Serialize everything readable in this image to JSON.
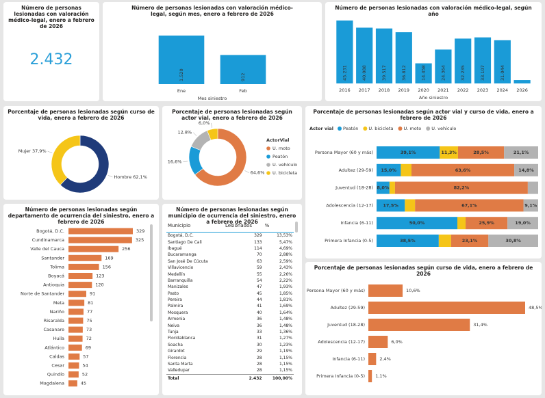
{
  "kpi": {
    "title": "Número de personas lesionadas con valoración médico-legal, enero a febrero de 2026",
    "value": "2.432"
  },
  "chart_data": [
    {
      "type": "bar",
      "title": "Número de personas lesionadas con valoración médico-legal, según mes, enero a febrero de 2026",
      "x_label": "Mes siniestro",
      "categories": [
        "Ene",
        "Feb"
      ],
      "values": [
        1520,
        912
      ],
      "value_labels": [
        "1.520",
        "912"
      ],
      "color": "#1a9bd7"
    },
    {
      "type": "bar",
      "title": "Número de personas lesionadas con valoración médico-legal, según año",
      "x_label": "Año siniestro",
      "categories": [
        "2016",
        "2017",
        "2018",
        "2019",
        "2020",
        "2021",
        "2022",
        "2023",
        "2024",
        "2026"
      ],
      "values": [
        45231,
        40088,
        39517,
        36812,
        14458,
        24364,
        32235,
        33107,
        31044,
        2432
      ],
      "value_labels": [
        "45.231",
        "40.088",
        "39.517",
        "36.812",
        "14.458",
        "24.364",
        "32.235",
        "33.107",
        "31.044",
        null
      ],
      "color": "#1a9bd7"
    },
    {
      "type": "donut",
      "title": "Porcentaje de personas lesionadas según curso de vida, enero a febrero de 2026",
      "categories": [
        "Hombre",
        "Mujer"
      ],
      "values": [
        62.1,
        37.9
      ],
      "value_labels": [
        "62,1%",
        "37,9%"
      ],
      "colors": [
        "#1f3b7a",
        "#f5c518"
      ]
    },
    {
      "type": "donut",
      "title": "Porcentaje de personas lesionadas según actor vial, enero a febrero de 2026",
      "legend_title": "ActorVial",
      "categories": [
        "U. moto",
        "Peatón",
        "U. vehículo",
        "U. bicicleta"
      ],
      "values": [
        64.6,
        16.6,
        12.8,
        6.0
      ],
      "value_labels": [
        "64,6%",
        "16,6%",
        "12,8%",
        "6,0%"
      ],
      "colors": [
        "#e07b45",
        "#1a9bd7",
        "#b3b3b3",
        "#f5c518"
      ]
    },
    {
      "type": "stacked_bar_h",
      "title": "Porcentaje de personas lesionadas según actor vial y curso de vida, enero a febrero de 2026",
      "legend_title": "Actor vial",
      "categories": [
        "Persona Mayor (60 y más)",
        "Adultez (29-59)",
        "Juventud (18-28)",
        "Adolescencia (12-17)",
        "Infancia (6-11)",
        "Primera Infancia (0-5)"
      ],
      "series": [
        {
          "name": "Peatón",
          "color": "#1a9bd7",
          "values": [
            39.1,
            15.0,
            8.0,
            17.5,
            50.0,
            38.5
          ],
          "value_labels": [
            "39,1%",
            "15,0%",
            "8,0%",
            "17,5%",
            "50,0%",
            "38,5%"
          ]
        },
        {
          "name": "U. bicicleta",
          "color": "#f5c518",
          "values": [
            11.3,
            6.6,
            3.4,
            6.3,
            5.1,
            7.6
          ],
          "value_labels": [
            "11,3%",
            null,
            null,
            null,
            null,
            null
          ]
        },
        {
          "name": "U. moto",
          "color": "#e07b45",
          "values": [
            28.5,
            63.6,
            82.2,
            67.1,
            25.9,
            23.1
          ],
          "value_labels": [
            "28,5%",
            "63,6%",
            "82,2%",
            "67,1%",
            "25,9%",
            "23,1%"
          ]
        },
        {
          "name": "U. vehículo",
          "color": "#b3b3b3",
          "values": [
            21.1,
            14.8,
            6.4,
            9.1,
            19.0,
            30.8
          ],
          "value_labels": [
            "21,1%",
            "14,8%",
            null,
            "9,1%",
            "19,0%",
            "30,8%"
          ]
        }
      ]
    },
    {
      "type": "bar_h",
      "title": "Número de personas lesionadas según departamento de ocurrencia del siniestro, enero a febrero de 2026",
      "categories": [
        "Bogotá, D.C.",
        "Cundinamarca",
        "Valle del Cauca",
        "Santander",
        "Tolima",
        "Boyacá",
        "Antioquia",
        "Norte de Santander",
        "Meta",
        "Nariño",
        "Risaralda",
        "Casanare",
        "Huila",
        "Atlántico",
        "Caldas",
        "Cesar",
        "Quindío",
        "Magdalena"
      ],
      "values": [
        329,
        325,
        256,
        169,
        156,
        123,
        120,
        91,
        81,
        77,
        75,
        73,
        72,
        69,
        57,
        54,
        52,
        45
      ],
      "color": "#e07b45"
    },
    {
      "type": "bar_h",
      "title": "Porcentaje de personas lesionadas según curso de vida, enero a febrero de 2026",
      "categories": [
        "Persona Mayor (60 y más)",
        "Adultez (29-59)",
        "Juventud (18-28)",
        "Adolescencia (12-17)",
        "Infancia (6-11)",
        "Primera Infancia (0-5)"
      ],
      "values": [
        10.6,
        48.5,
        31.4,
        6.0,
        2.4,
        1.1
      ],
      "value_labels": [
        "10,6%",
        "48,5%",
        "31,4%",
        "6,0%",
        "2,4%",
        "1,1%"
      ],
      "color": "#e07b45"
    }
  ],
  "table": {
    "title": "Número de personas lesionadas según municipio de ocurrencia del siniestro, enero a febrero de 2026",
    "columns": [
      "Municipio",
      "Lesionados",
      "%"
    ],
    "rows": [
      [
        "Bogotá, D.C.",
        329,
        "13,53%"
      ],
      [
        "Santiago De Cali",
        133,
        "5,47%"
      ],
      [
        "Ibagué",
        114,
        "4,69%"
      ],
      [
        "Bucaramanga",
        70,
        "2,88%"
      ],
      [
        "San José De Cúcuta",
        63,
        "2,59%"
      ],
      [
        "Villavicencio",
        59,
        "2,43%"
      ],
      [
        "Medellín",
        55,
        "2,26%"
      ],
      [
        "Barranquilla",
        54,
        "2,22%"
      ],
      [
        "Manizales",
        47,
        "1,93%"
      ],
      [
        "Pasto",
        45,
        "1,85%"
      ],
      [
        "Pereira",
        44,
        "1,81%"
      ],
      [
        "Palmira",
        41,
        "1,69%"
      ],
      [
        "Mosquera",
        40,
        "1,64%"
      ],
      [
        "Armenia",
        36,
        "1,48%"
      ],
      [
        "Neiva",
        36,
        "1,48%"
      ],
      [
        "Tunja",
        33,
        "1,36%"
      ],
      [
        "Floridablanca",
        31,
        "1,27%"
      ],
      [
        "Soacha",
        30,
        "1,23%"
      ],
      [
        "Girardot",
        29,
        "1,19%"
      ],
      [
        "Florencia",
        28,
        "1,15%"
      ],
      [
        "Santa Marta",
        28,
        "1,15%"
      ],
      [
        "Valledupar",
        28,
        "1,15%"
      ]
    ],
    "total": [
      "Total",
      "2.432",
      "100,00%"
    ]
  }
}
